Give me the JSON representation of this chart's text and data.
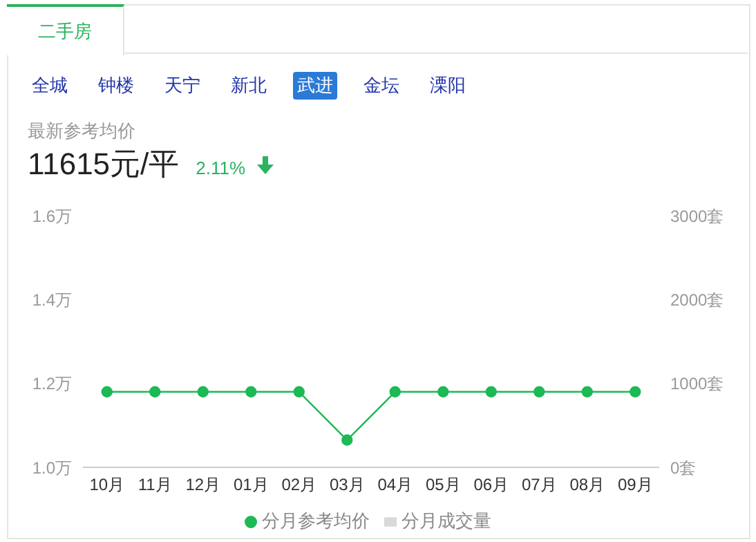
{
  "chart_data": {
    "type": "line",
    "annotations": [
      "二手房",
      "全城",
      "钟楼",
      "天宁",
      "新北",
      "武进",
      "金坛",
      "溧阳",
      "最新参考均价",
      "11615元/平",
      "2.11%"
    ],
    "categories": [
      "10月",
      "11月",
      "12月",
      "01月",
      "02月",
      "03月",
      "04月",
      "05月",
      "06月",
      "07月",
      "08月",
      "09月"
    ],
    "series": [
      {
        "name": "分月参考均价",
        "color": "#1db954",
        "values": [
          1.18,
          1.18,
          1.18,
          1.18,
          1.18,
          1.065,
          1.18,
          1.18,
          1.18,
          1.18,
          1.18,
          1.18
        ]
      },
      {
        "name": "分月成交量",
        "type": "bar",
        "color": "#d9d9d9",
        "values": [
          null,
          null,
          null,
          null,
          null,
          null,
          null,
          null,
          null,
          null,
          null,
          null
        ]
      }
    ],
    "ylim": [
      1.0,
      1.6
    ],
    "yticks": [
      {
        "value": 1.0,
        "label": "1.0万"
      },
      {
        "value": 1.2,
        "label": "1.2万"
      },
      {
        "value": 1.4,
        "label": "1.4万"
      },
      {
        "value": 1.6,
        "label": "1.6万"
      }
    ],
    "y2lim": [
      0,
      3000
    ],
    "y2ticks": [
      {
        "value": 0,
        "label": "0套"
      },
      {
        "value": 1000,
        "label": "1000套"
      },
      {
        "value": 2000,
        "label": "2000套"
      },
      {
        "value": 3000,
        "label": "3000套"
      }
    ],
    "grid": false,
    "legend": "bottom",
    "marker": "circle",
    "line_style": "solid"
  }
}
